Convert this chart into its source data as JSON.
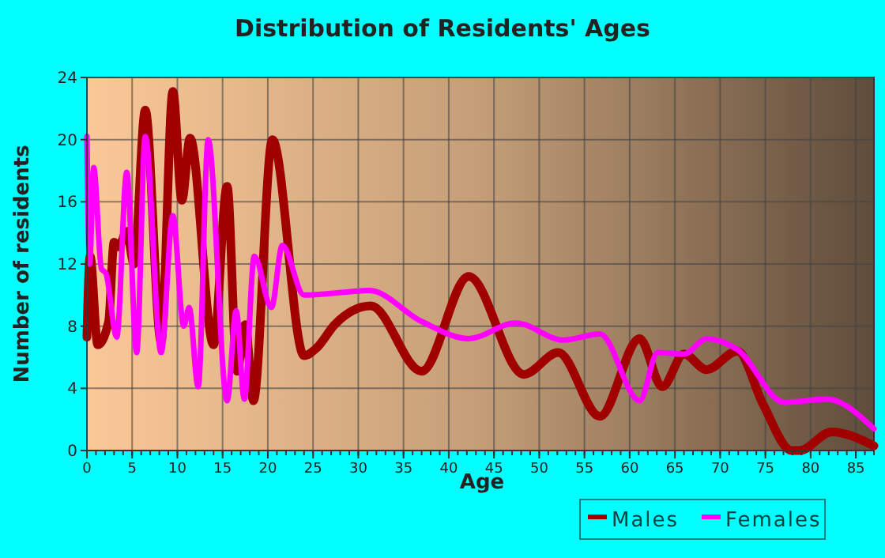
{
  "chart_data": {
    "type": "line",
    "title": "Distribution of Residents' Ages",
    "xlabel": "Age",
    "ylabel": "Number of residents",
    "xlim": [
      0,
      87
    ],
    "xticks": [
      0,
      5,
      10,
      15,
      20,
      25,
      30,
      35,
      40,
      45,
      50,
      55,
      60,
      65,
      70,
      75,
      80,
      85
    ],
    "ylim": [
      0,
      24
    ],
    "yticks": [
      0,
      4,
      8,
      12,
      16,
      20,
      24
    ],
    "grid": true,
    "legend": "bottom right",
    "marker": "none",
    "line_style": "solid",
    "series": [
      {
        "name": "Males",
        "color": "#a00000",
        "x": [
          0,
          0.35,
          1.2,
          2.4,
          3,
          3.5,
          4.4,
          5.2,
          6.45,
          8.2,
          9.5,
          10.5,
          11.4,
          14,
          15.5,
          16.6,
          17.5,
          18.4,
          20.5,
          24,
          25.4,
          27.4,
          31.4,
          37,
          42.2,
          48.3,
          52.1,
          56.7,
          61.1,
          63.6,
          66,
          68.5,
          71.9,
          74.8,
          77.9,
          78.8,
          82.3,
          87
        ],
        "values": [
          7.3,
          12.5,
          6.8,
          8.3,
          13.4,
          13.1,
          14.1,
          12,
          21.9,
          7,
          23.1,
          16.1,
          20.1,
          6.8,
          17,
          5.1,
          8.1,
          3.2,
          20,
          6.1,
          6.6,
          8.1,
          9.3,
          5.1,
          11.2,
          4.9,
          6.3,
          2.2,
          7.2,
          4.1,
          6.2,
          5.2,
          6.4,
          2.9,
          0,
          0,
          1.2,
          0.3
        ]
      },
      {
        "name": "Females",
        "color": "#ff00ff",
        "x": [
          0,
          0.3,
          0.75,
          1.6,
          2.1,
          3.3,
          4.4,
          5.5,
          6.45,
          8.2,
          9.5,
          10.7,
          11.3,
          12.3,
          13.4,
          15.5,
          16.5,
          17.4,
          18.5,
          20.4,
          21.6,
          24,
          28.8,
          31.2,
          37,
          42.2,
          47.4,
          52.7,
          56.7,
          61.1,
          63.1,
          66,
          68.5,
          71.9,
          77.1,
          81.8,
          87
        ],
        "values": [
          20.2,
          12,
          18.2,
          11.7,
          11.4,
          7.3,
          17.9,
          6.3,
          20.2,
          6.3,
          15.1,
          8,
          9.2,
          4.1,
          20,
          3.2,
          9,
          3.3,
          12.5,
          9.2,
          13.2,
          10,
          10.2,
          10.3,
          8.3,
          7.2,
          8.2,
          7.1,
          7.5,
          3.2,
          6.3,
          6.2,
          7.2,
          6.5,
          3.1,
          3.3,
          1.4
        ]
      }
    ]
  }
}
